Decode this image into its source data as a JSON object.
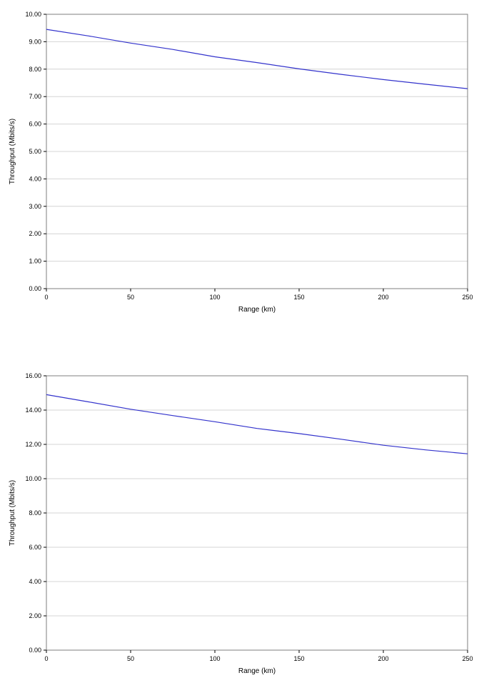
{
  "page": {
    "background": "#ffffff"
  },
  "style": {
    "grid_color": "#d4d4d4",
    "border_color": "#7f7f7f",
    "axis_color": "#000000",
    "text_color": "#000000"
  },
  "chart_data": [
    {
      "type": "line",
      "title": "",
      "xlabel": "Range (km)",
      "ylabel": "Throughput (Mbits/s)",
      "xlim": [
        0,
        250
      ],
      "ylim": [
        0,
        10
      ],
      "x_ticks": [
        0,
        50,
        100,
        150,
        200,
        250
      ],
      "y_tick_step": 1,
      "y_tick_decimals": 2,
      "grid": "horizontal",
      "legend": "none",
      "line_color": "#3333cc",
      "x": [
        0,
        25,
        50,
        75,
        100,
        125,
        150,
        175,
        200,
        225,
        250
      ],
      "y": [
        9.45,
        9.21,
        8.95,
        8.72,
        8.45,
        8.24,
        8.01,
        7.81,
        7.62,
        7.45,
        7.29
      ]
    },
    {
      "type": "line",
      "title": "",
      "xlabel": "Range (km)",
      "ylabel": "Throughput (Mbits/s)",
      "xlim": [
        0,
        250
      ],
      "ylim": [
        0,
        16
      ],
      "x_ticks": [
        0,
        50,
        100,
        150,
        200,
        250
      ],
      "y_tick_step": 2,
      "y_tick_decimals": 2,
      "grid": "horizontal",
      "legend": "none",
      "line_color": "#3333cc",
      "x": [
        0,
        25,
        50,
        75,
        100,
        125,
        150,
        175,
        200,
        225,
        250
      ],
      "y": [
        14.9,
        14.48,
        14.05,
        13.68,
        13.32,
        12.93,
        12.63,
        12.3,
        11.95,
        11.68,
        11.45
      ]
    }
  ]
}
